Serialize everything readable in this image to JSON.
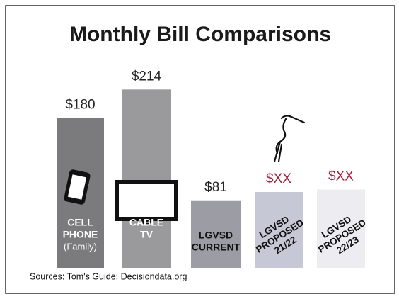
{
  "chart_data": {
    "type": "bar",
    "title": "Monthly Bill Comparisons",
    "categories": [
      [
        "CELL",
        "PHONE",
        "(Family)"
      ],
      [
        "CABLE",
        "TV"
      ],
      [
        "LGVSD",
        "CURRENT"
      ],
      [
        "LGVSD",
        "PROPOSED",
        "21/22"
      ],
      [
        "LGVSD",
        "PROPOSED",
        "22/23"
      ]
    ],
    "values": [
      180,
      214,
      81,
      91,
      94
    ],
    "value_labels": [
      "$180",
      "$214",
      "$81",
      "$XX",
      "$XX"
    ],
    "colors": [
      "#7b7b7d",
      "#9a9a9c",
      "#9c9ca4",
      "#c6c8d6",
      "#ececf1"
    ],
    "value_label_colors": [
      "#222222",
      "#222222",
      "#222222",
      "#a3203c",
      "#a3203c"
    ],
    "source": "Sources: Tom's Guide; Decisiondata.org"
  }
}
